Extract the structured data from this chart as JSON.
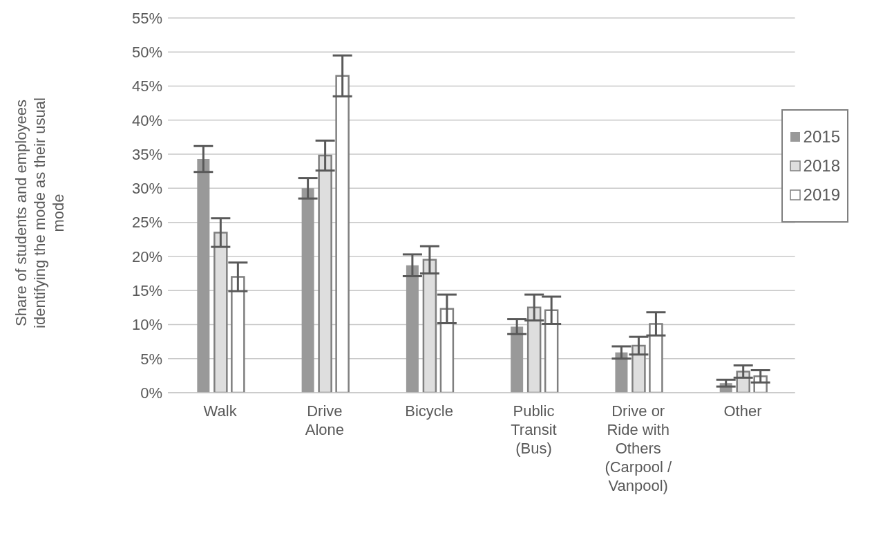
{
  "chart_data": {
    "type": "bar",
    "ylabel": "Share of students and employees identifying the mode as their usual mode",
    "categories": [
      "Walk",
      "Drive Alone",
      "Bicycle",
      "Public Transit (Bus)",
      "Drive or Ride with Others (Carpool / Vanpool)",
      "Other"
    ],
    "series": [
      {
        "name": "2015",
        "color": "#999999",
        "values": [
          34.3,
          30.0,
          18.7,
          9.7,
          5.9,
          1.4
        ],
        "errors": [
          1.9,
          1.5,
          1.6,
          1.1,
          0.9,
          0.5
        ]
      },
      {
        "name": "2018",
        "color": "#dedede",
        "values": [
          23.5,
          34.8,
          19.5,
          12.5,
          6.9,
          3.1
        ],
        "errors": [
          2.1,
          2.2,
          2.0,
          1.9,
          1.3,
          0.9
        ]
      },
      {
        "name": "2019",
        "color": "#ffffff",
        "values": [
          17.0,
          46.5,
          12.3,
          12.1,
          10.1,
          2.4
        ],
        "errors": [
          2.1,
          3.0,
          2.1,
          2.0,
          1.7,
          0.9
        ]
      }
    ],
    "ylim": [
      0,
      55
    ],
    "yticks": [
      {
        "value": 0,
        "label": "0%"
      },
      {
        "value": 5,
        "label": "5%"
      },
      {
        "value": 10,
        "label": "10%"
      },
      {
        "value": 15,
        "label": "15%"
      },
      {
        "value": 20,
        "label": "20%"
      },
      {
        "value": 25,
        "label": "25%"
      },
      {
        "value": 30,
        "label": "30%"
      },
      {
        "value": 35,
        "label": "35%"
      },
      {
        "value": 40,
        "label": "40%"
      },
      {
        "value": 45,
        "label": "45%"
      },
      {
        "value": 50,
        "label": "50%"
      },
      {
        "value": 55,
        "label": "55%"
      }
    ],
    "grid": "y",
    "legend": "right"
  }
}
